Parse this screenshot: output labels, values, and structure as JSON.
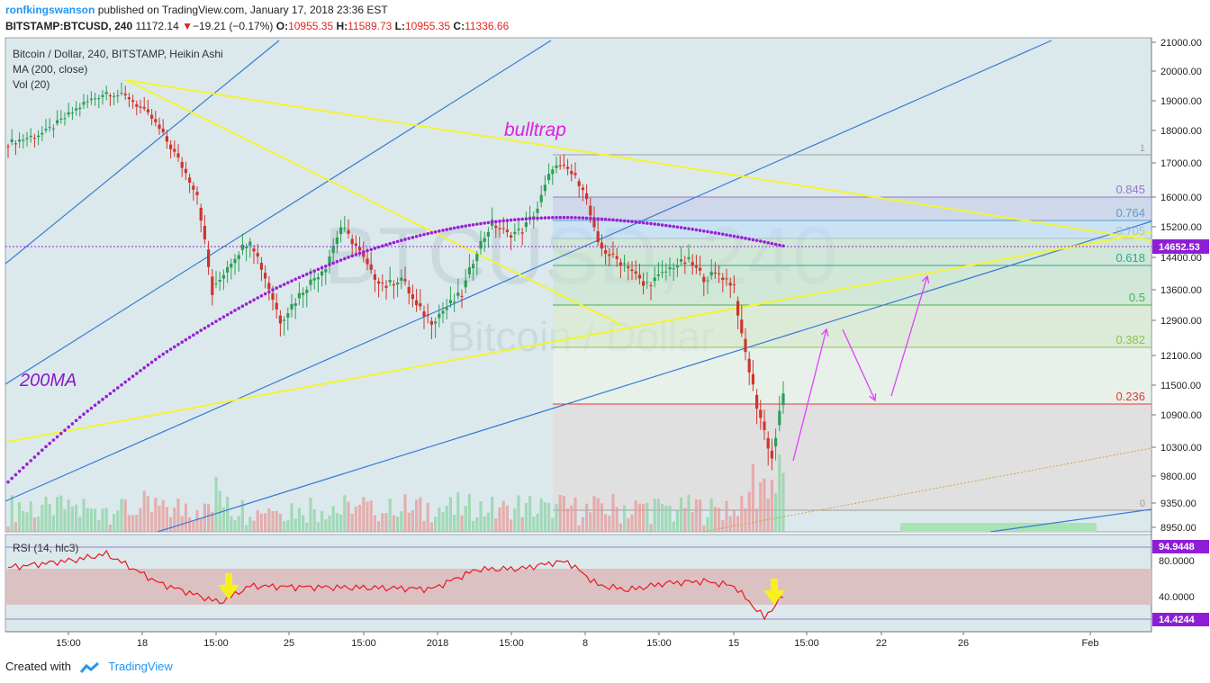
{
  "header": {
    "author": "ronfkingswanson",
    "published": "published on TradingView.com, January 17, 2018 23:36 EST",
    "symbol": "BITSTAMP:BTCUSD, 240",
    "price": "11172.14",
    "change_arrow": "▼",
    "change": "−19.21 (−0.17%)",
    "o_label": "O:",
    "o_val": "10955.35",
    "h_label": "H:",
    "h_val": "11589.73",
    "l_label": "L:",
    "l_val": "10955.35",
    "c_label": "C:",
    "c_val": "11336.66"
  },
  "legend": {
    "main": "Bitcoin / Dollar, 240, BITSTAMP, Heikin Ashi",
    "ma": "MA (200, close)",
    "vol": "Vol (20)",
    "rsi": "RSI (14, hlc3)"
  },
  "watermark": {
    "big": "BTCUSD, 240",
    "small": "Bitcoin / Dollar"
  },
  "annotations": {
    "bulltrap": "bulltrap",
    "ma200": "200MA"
  },
  "fib": [
    {
      "label": "1",
      "color": "#9e9e9e"
    },
    {
      "label": "0.845",
      "color": "#9575cd"
    },
    {
      "label": "0.764",
      "color": "#5c9bd1"
    },
    {
      "label": "0.705",
      "color": "#b0bec5"
    },
    {
      "label": "0.618",
      "color": "#26a69a"
    },
    {
      "label": "0.5",
      "color": "#4caf50"
    },
    {
      "label": "0.382",
      "color": "#8bc34a"
    },
    {
      "label": "0.236",
      "color": "#e53935"
    },
    {
      "label": "0",
      "color": "#9e9e9e"
    }
  ],
  "price_axis": {
    "ticks": [
      "21000.00",
      "20000.00",
      "19000.00",
      "18000.00",
      "17000.00",
      "16000.00",
      "15200.00",
      "14400.00",
      "13600.00",
      "12900.00",
      "12100.00",
      "11500.00",
      "10900.00",
      "10300.00",
      "9800.00",
      "9350.00",
      "8950.00"
    ],
    "current": "14652.53"
  },
  "rsi_axis": {
    "ticks": [
      "80.0000",
      "40.0000"
    ],
    "hi": "94.9448",
    "lo": "14.4244"
  },
  "time_axis": [
    "15:00",
    "18",
    "15:00",
    "25",
    "15:00",
    "2018",
    "15:00",
    "8",
    "15:00",
    "15",
    "15:00",
    "22",
    "26",
    "Feb"
  ],
  "footer": {
    "created": "Created with",
    "brand": "TradingView"
  },
  "colors": {
    "up": "#2e9e55",
    "down": "#d0342c",
    "ma": "#9b1fd6",
    "trend": "#f3f335",
    "channel": "#3a7bd5",
    "arrows": "#e040fb"
  },
  "chart_data": {
    "type": "candlestick",
    "symbol": "BITSTAMP:BTCUSD",
    "interval": "240",
    "style": "Heikin Ashi",
    "ylim": [
      8950,
      21000
    ],
    "ma200": {
      "start": 9700,
      "peak": 15450,
      "end": 14700
    },
    "price_path": [
      [
        0,
        17600
      ],
      [
        10,
        17950
      ],
      [
        20,
        18900
      ],
      [
        26,
        19300
      ],
      [
        32,
        19100
      ],
      [
        38,
        18400
      ],
      [
        44,
        17300
      ],
      [
        50,
        16100
      ],
      [
        54,
        13500
      ],
      [
        58,
        14200
      ],
      [
        64,
        14900
      ],
      [
        68,
        13900
      ],
      [
        72,
        12900
      ],
      [
        78,
        13600
      ],
      [
        84,
        14200
      ],
      [
        88,
        15200
      ],
      [
        92,
        14700
      ],
      [
        96,
        14000
      ],
      [
        100,
        13700
      ],
      [
        104,
        13900
      ],
      [
        108,
        13200
      ],
      [
        112,
        12900
      ],
      [
        116,
        13200
      ],
      [
        120,
        13500
      ],
      [
        124,
        14600
      ],
      [
        128,
        15300
      ],
      [
        132,
        15000
      ],
      [
        136,
        15100
      ],
      [
        140,
        15700
      ],
      [
        144,
        16900
      ],
      [
        148,
        16800
      ],
      [
        152,
        16300
      ],
      [
        156,
        14700
      ],
      [
        160,
        14400
      ],
      [
        164,
        14200
      ],
      [
        168,
        13700
      ],
      [
        172,
        13900
      ],
      [
        176,
        14200
      ],
      [
        180,
        14300
      ],
      [
        184,
        13900
      ],
      [
        188,
        14000
      ],
      [
        192,
        13700
      ],
      [
        194,
        12500
      ],
      [
        198,
        11100
      ],
      [
        202,
        10100
      ],
      [
        205,
        11300
      ]
    ],
    "rsi_ylim": [
      0,
      100
    ],
    "rsi_bands": [
      70,
      30
    ],
    "rsi_path": [
      [
        0,
        66
      ],
      [
        18,
        74
      ],
      [
        26,
        80
      ],
      [
        40,
        50
      ],
      [
        56,
        30
      ],
      [
        64,
        47
      ],
      [
        78,
        46
      ],
      [
        100,
        45
      ],
      [
        112,
        44
      ],
      [
        124,
        64
      ],
      [
        136,
        65
      ],
      [
        144,
        71
      ],
      [
        148,
        72
      ],
      [
        156,
        48
      ],
      [
        164,
        43
      ],
      [
        174,
        50
      ],
      [
        184,
        52
      ],
      [
        192,
        47
      ],
      [
        200,
        14.4
      ],
      [
        205,
        37
      ]
    ]
  }
}
